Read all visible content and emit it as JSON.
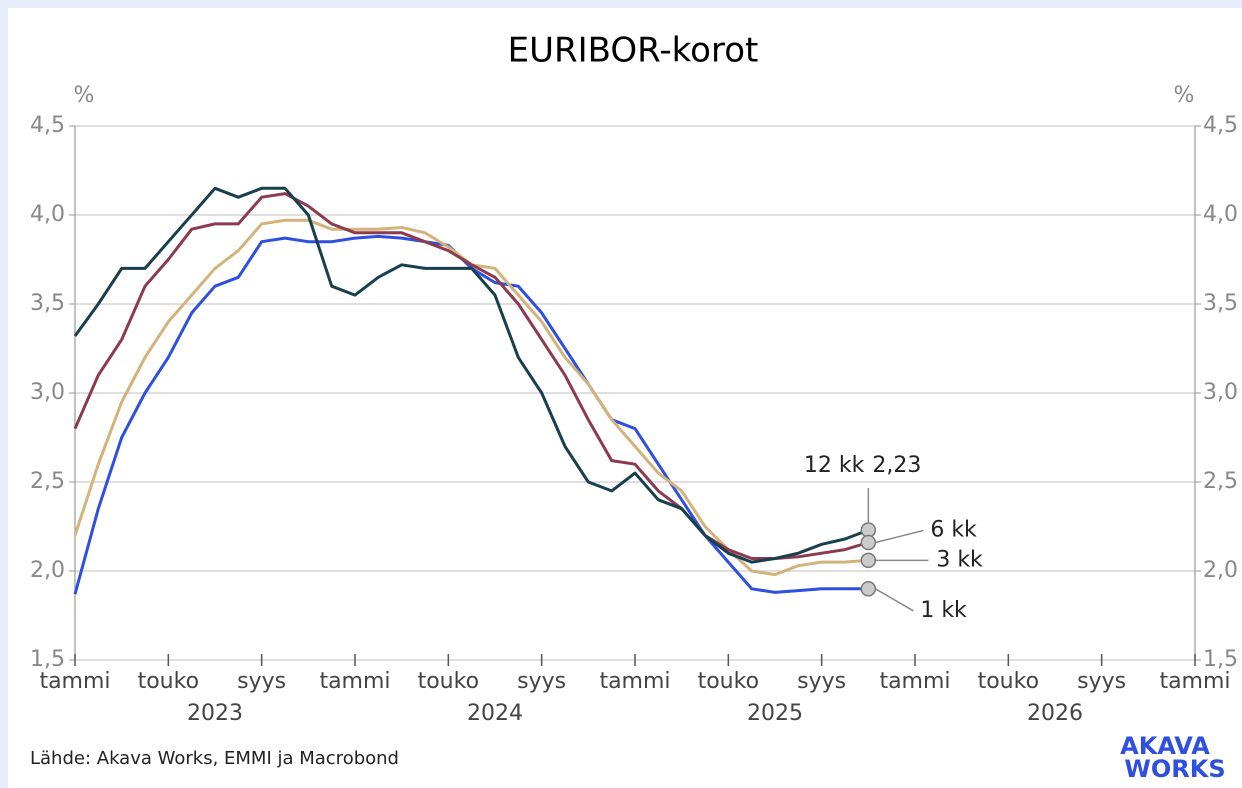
{
  "chart_data": {
    "type": "line",
    "title": "EURIBOR-korot",
    "y_unit": "%",
    "x": [
      "2023-01",
      "2023-02",
      "2023-03",
      "2023-04",
      "2023-05",
      "2023-06",
      "2023-07",
      "2023-08",
      "2023-09",
      "2023-10",
      "2023-11",
      "2023-12",
      "2024-01",
      "2024-02",
      "2024-03",
      "2024-04",
      "2024-05",
      "2024-06",
      "2024-07",
      "2024-08",
      "2024-09",
      "2024-10",
      "2024-11",
      "2024-12",
      "2025-01",
      "2025-02",
      "2025-03",
      "2025-04",
      "2025-05",
      "2025-06",
      "2025-07",
      "2025-08",
      "2025-09",
      "2025-10",
      "2025-11"
    ],
    "series": [
      {
        "name": "12 kk",
        "color": "#173f4d",
        "end_label": "2,23",
        "values": [
          3.32,
          3.5,
          3.7,
          3.7,
          3.85,
          4.0,
          4.15,
          4.1,
          4.15,
          4.15,
          4.0,
          3.6,
          3.55,
          3.65,
          3.72,
          3.7,
          3.7,
          3.7,
          3.55,
          3.2,
          3.0,
          2.7,
          2.5,
          2.45,
          2.55,
          2.4,
          2.35,
          2.2,
          2.1,
          2.05,
          2.07,
          2.1,
          2.15,
          2.18,
          2.23
        ]
      },
      {
        "name": "6 kk",
        "color": "#8c3a50",
        "values": [
          2.8,
          3.1,
          3.3,
          3.6,
          3.75,
          3.92,
          3.95,
          3.95,
          4.1,
          4.12,
          4.05,
          3.95,
          3.9,
          3.9,
          3.9,
          3.85,
          3.8,
          3.72,
          3.65,
          3.5,
          3.3,
          3.1,
          2.85,
          2.62,
          2.6,
          2.45,
          2.35,
          2.2,
          2.12,
          2.07,
          2.07,
          2.08,
          2.1,
          2.12,
          2.16
        ]
      },
      {
        "name": "3 kk",
        "color": "#d3b37a",
        "values": [
          2.2,
          2.6,
          2.95,
          3.2,
          3.4,
          3.55,
          3.7,
          3.8,
          3.95,
          3.97,
          3.97,
          3.92,
          3.92,
          3.92,
          3.93,
          3.9,
          3.82,
          3.72,
          3.7,
          3.55,
          3.4,
          3.2,
          3.05,
          2.85,
          2.7,
          2.55,
          2.45,
          2.25,
          2.12,
          2.0,
          1.98,
          2.03,
          2.05,
          2.05,
          2.06
        ]
      },
      {
        "name": "1 kk",
        "color": "#2e4fe0",
        "values": [
          1.87,
          2.35,
          2.75,
          3.0,
          3.2,
          3.45,
          3.6,
          3.65,
          3.85,
          3.87,
          3.85,
          3.85,
          3.87,
          3.88,
          3.87,
          3.85,
          3.83,
          3.7,
          3.62,
          3.6,
          3.45,
          3.25,
          3.05,
          2.85,
          2.8,
          2.6,
          2.4,
          2.2,
          2.05,
          1.9,
          1.88,
          1.89,
          1.9,
          1.9,
          1.9
        ]
      }
    ],
    "xlim": [
      "2023-01",
      "2027-01"
    ],
    "xticks": [
      {
        "value": "2023-01",
        "label": "tammi"
      },
      {
        "value": "2023-05",
        "label": "touko"
      },
      {
        "value": "2023-09",
        "label": "syys"
      },
      {
        "value": "2024-01",
        "label": "tammi"
      },
      {
        "value": "2024-05",
        "label": "touko"
      },
      {
        "value": "2024-09",
        "label": "syys"
      },
      {
        "value": "2025-01",
        "label": "tammi"
      },
      {
        "value": "2025-05",
        "label": "touko"
      },
      {
        "value": "2025-09",
        "label": "syys"
      },
      {
        "value": "2026-01",
        "label": "tammi"
      },
      {
        "value": "2026-05",
        "label": "touko"
      },
      {
        "value": "2026-09",
        "label": "syys"
      },
      {
        "value": "2027-01",
        "label": "tammi"
      }
    ],
    "years": [
      "2023",
      "2024",
      "2025",
      "2026"
    ],
    "ylim": [
      1.5,
      4.5
    ],
    "yticks": [
      {
        "value": 1.5,
        "label": "1,5"
      },
      {
        "value": 2.0,
        "label": "2,0"
      },
      {
        "value": 2.5,
        "label": "2,5"
      },
      {
        "value": 3.0,
        "label": "3,0"
      },
      {
        "value": 3.5,
        "label": "3,5"
      },
      {
        "value": 4.0,
        "label": "4,0"
      },
      {
        "value": 4.5,
        "label": "4,5"
      }
    ],
    "grid": true,
    "source": "Lähde: Akava Works, EMMI ja Macrobond",
    "logo": [
      "AKAVA",
      "WORKS"
    ]
  }
}
